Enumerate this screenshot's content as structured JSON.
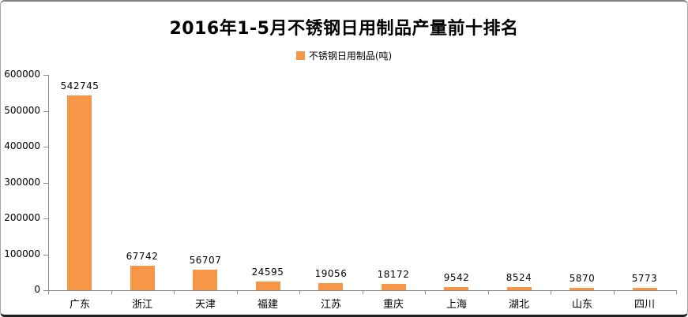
{
  "chart_data": {
    "type": "bar",
    "title": "2016年1-5月不锈钢日用制品产量前十排名",
    "legend": [
      {
        "label": "不锈钢日用制品(吨)",
        "color": "#F79646"
      }
    ],
    "legend_position": "top-center",
    "categories": [
      "广东",
      "浙江",
      "天津",
      "福建",
      "江苏",
      "重庆",
      "上海",
      "湖北",
      "山东",
      "四川"
    ],
    "series": [
      {
        "name": "不锈钢日用制品(吨)",
        "values": [
          542745,
          67742,
          56707,
          24595,
          19056,
          18172,
          9542,
          8524,
          5870,
          5773
        ]
      }
    ],
    "data_labels_visible": true,
    "yticks": [
      0,
      100000,
      200000,
      300000,
      400000,
      500000,
      600000
    ],
    "ylim": [
      0,
      600000
    ],
    "xlabel": "",
    "ylabel": "",
    "grid": false,
    "colors": {
      "bar": "#F79646",
      "axis": "#8C8C8C",
      "text": "#000000",
      "background": "#FFFFFF"
    }
  }
}
